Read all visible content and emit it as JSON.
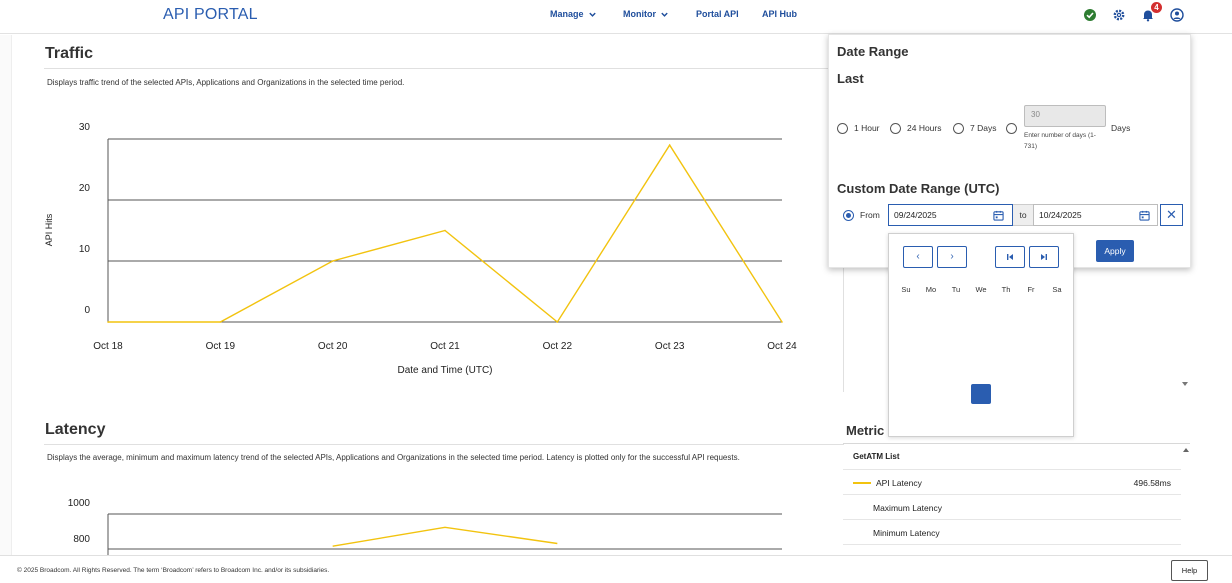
{
  "header": {
    "brand": "API PORTAL",
    "nav": [
      {
        "label": "Manage",
        "has_dropdown": true
      },
      {
        "label": "Monitor",
        "has_dropdown": true
      },
      {
        "label": "Portal API",
        "has_dropdown": false
      },
      {
        "label": "API Hub",
        "has_dropdown": false
      }
    ],
    "notification_count": "4",
    "icons": [
      "status-ok-icon",
      "settings-gear-icon",
      "bell-icon",
      "user-profile-icon"
    ]
  },
  "traffic": {
    "title": "Traffic",
    "description": "Displays traffic trend of the selected APIs, Applications and Organizations in the selected time period."
  },
  "latency": {
    "title": "Latency",
    "description": "Displays the average, minimum and maximum latency trend of the selected APIs, Applications and Organizations in the selected time period. Latency is plotted only for the successful API requests."
  },
  "chart_data": [
    {
      "type": "line",
      "ylabel": "API Hits",
      "xlabel": "Date and Time (UTC)",
      "x": [
        "Oct 18",
        "Oct 19",
        "Oct 20",
        "Oct 21",
        "Oct 22",
        "Oct 23",
        "Oct 24"
      ],
      "yticks": [
        "0",
        "10",
        "20",
        "30"
      ],
      "ylim": [
        0,
        30
      ],
      "grid": true,
      "series": [
        {
          "color": "#f2c30f",
          "points": [
            {
              "x": "Oct 18",
              "y": 0
            },
            {
              "x": "Oct 19",
              "y": 0
            },
            {
              "x": "Oct 20",
              "y": 10
            },
            {
              "x": "Oct 21",
              "y": 15
            },
            {
              "x": "Oct 22",
              "y": 0
            },
            {
              "x": "Oct 23",
              "y": 29
            },
            {
              "x": "Oct 24",
              "y": 0
            }
          ]
        }
      ]
    },
    {
      "type": "line",
      "yticks": [
        "800",
        "1000"
      ],
      "grid": true,
      "partial_view": true,
      "series": [
        {
          "color": "#f2c30f",
          "points": [
            {
              "x": "Oct 20",
              "y": 760
            },
            {
              "x": "Oct 21",
              "y": 865
            },
            {
              "x": "Oct 22",
              "y": 775
            }
          ]
        }
      ]
    }
  ],
  "date_range": {
    "title": "Date Range",
    "last_label": "Last",
    "options": [
      {
        "label": "1 Hour",
        "checked": false
      },
      {
        "label": "24 Hours",
        "checked": false
      },
      {
        "label": "7 Days",
        "checked": false
      }
    ],
    "days_placeholder": "30",
    "days_hint": "Enter number of days (1-731)",
    "days_label": "Days",
    "custom_title": "Custom Date Range (UTC)",
    "from_label": "From",
    "from_value": "09/24/2025",
    "to_label": "to",
    "to_value": "10/24/2025",
    "clear_symbol": "✕",
    "apply_label": "Apply"
  },
  "calendar": {
    "nav": {
      "prev": "‹",
      "next": "›",
      "first": "⏮",
      "last": "⏭"
    },
    "weekdays": [
      "Su",
      "Mo",
      "Tu",
      "We",
      "Th",
      "Fr",
      "Sa"
    ],
    "accent": "#2a5db0"
  },
  "metrics": {
    "title": "Metric",
    "group": "GetATM List",
    "rows": [
      {
        "label": "API Latency",
        "value": "496.58ms",
        "has_swatch": true
      },
      {
        "label": "Maximum Latency",
        "value": "",
        "has_swatch": false
      },
      {
        "label": "Minimum Latency",
        "value": "",
        "has_swatch": false
      }
    ]
  },
  "footer": {
    "copyright": "© 2025 Broadcom. All Rights Reserved. The term ‘Broadcom’ refers to Broadcom Inc. and/or its subsidiaries.",
    "help": "Help"
  }
}
